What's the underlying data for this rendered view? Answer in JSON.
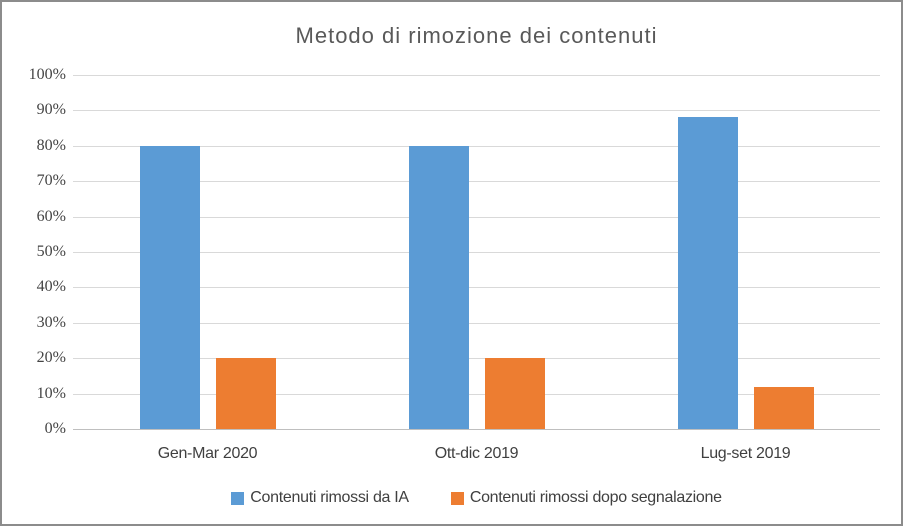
{
  "chart_data": {
    "type": "bar",
    "title": "Metodo di rimozione dei contenuti",
    "categories": [
      "Gen-Mar 2020",
      "Ott-dic 2019",
      "Lug-set 2019"
    ],
    "series": [
      {
        "name": "Contenuti rimossi da IA",
        "color": "#5B9BD5",
        "values": [
          80,
          80,
          88
        ]
      },
      {
        "name": "Contenuti rimossi dopo segnalazione",
        "color": "#ED7D31",
        "values": [
          20,
          20,
          12
        ]
      }
    ],
    "ylabel": "",
    "xlabel": "",
    "ylim": [
      0,
      100
    ],
    "y_tick_step": 10,
    "y_tick_labels": [
      "0%",
      "10%",
      "20%",
      "30%",
      "40%",
      "50%",
      "60%",
      "70%",
      "80%",
      "90%",
      "100%"
    ],
    "grid": true,
    "legend_position": "bottom",
    "colors": {
      "gridline": "#D9D9D9",
      "axis_line": "#BFBFBF",
      "title_text": "#595959",
      "tick_text": "#404040",
      "frame_border": "#8C8C8C",
      "background": "#FFFFFF"
    }
  }
}
